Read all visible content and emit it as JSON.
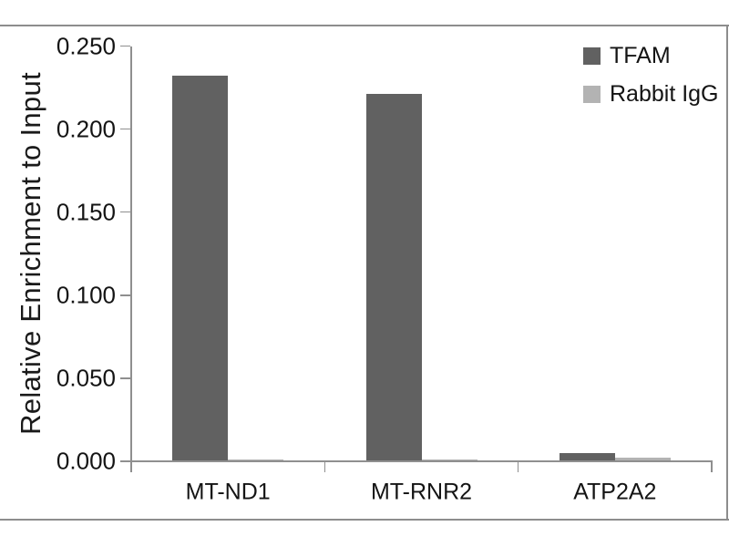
{
  "chart_data": {
    "type": "bar",
    "title": "",
    "categories": [
      "MT-ND1",
      "MT-RNR2",
      "ATP2A2"
    ],
    "series": [
      {
        "name": "TFAM",
        "color": "#616161",
        "values": [
          0.232,
          0.221,
          0.005
        ]
      },
      {
        "name": "Rabbit IgG",
        "color": "#b3b3b3",
        "values": [
          0.001,
          0.001,
          0.002
        ]
      }
    ],
    "xlabel": "",
    "ylabel": "Relative Enrichment to Input",
    "ylim": [
      0,
      0.25
    ],
    "ytick_step": 0.05,
    "ytick_labels": [
      "0.000",
      "0.050",
      "0.100",
      "0.150",
      "0.200",
      "0.250"
    ],
    "grid": false,
    "legend_position": "top-right",
    "axis_color": "#8f8f8f",
    "frame_color": "#8d8d8d",
    "text_color": "#141414"
  }
}
